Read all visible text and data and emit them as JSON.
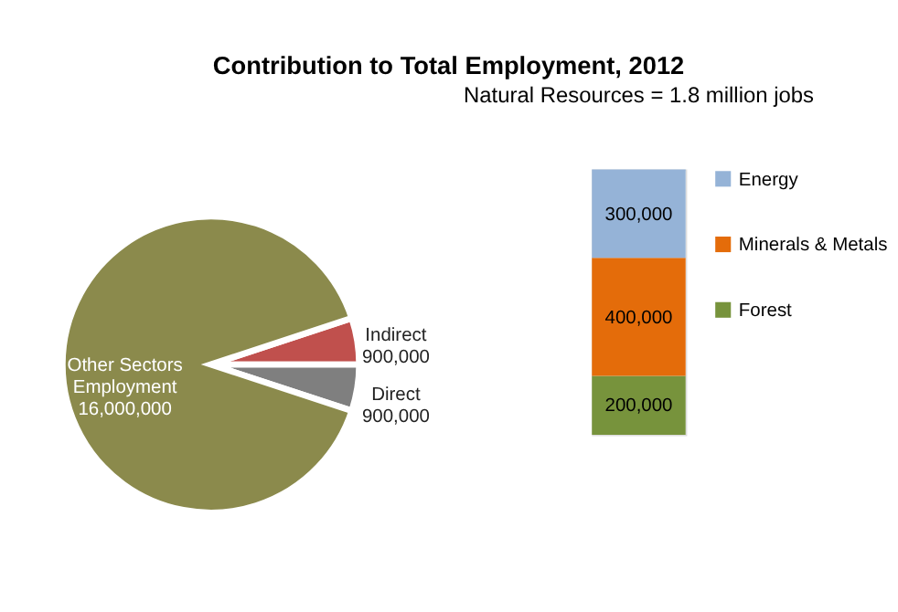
{
  "chart_data": [
    {
      "type": "pie",
      "title": "Contribution to Total Employment, 2012",
      "categories": [
        "Indirect",
        "Direct",
        "Other Sectors Employment"
      ],
      "values": [
        900000,
        900000,
        16000000
      ],
      "value_labels": [
        "900,000",
        "900,000",
        "16,000,000"
      ],
      "colors": [
        "#c0504d",
        "#7f7f7f",
        "#8b8a4c"
      ],
      "legend": false
    },
    {
      "type": "bar",
      "stacked": true,
      "legend": "right",
      "annotations": [
        "Natural Resources = 1.8 million jobs"
      ],
      "categories": [
        null
      ],
      "series": [
        {
          "name": "Forest",
          "color": "#77933c",
          "values": [
            200000
          ],
          "value_labels": [
            "200,000"
          ]
        },
        {
          "name": "Minerals & Metals",
          "color": "#e46c0a",
          "values": [
            400000
          ],
          "value_labels": [
            "400,000"
          ]
        },
        {
          "name": "Energy",
          "color": "#95b3d7",
          "values": [
            300000
          ],
          "value_labels": [
            "300,000"
          ]
        }
      ]
    }
  ]
}
